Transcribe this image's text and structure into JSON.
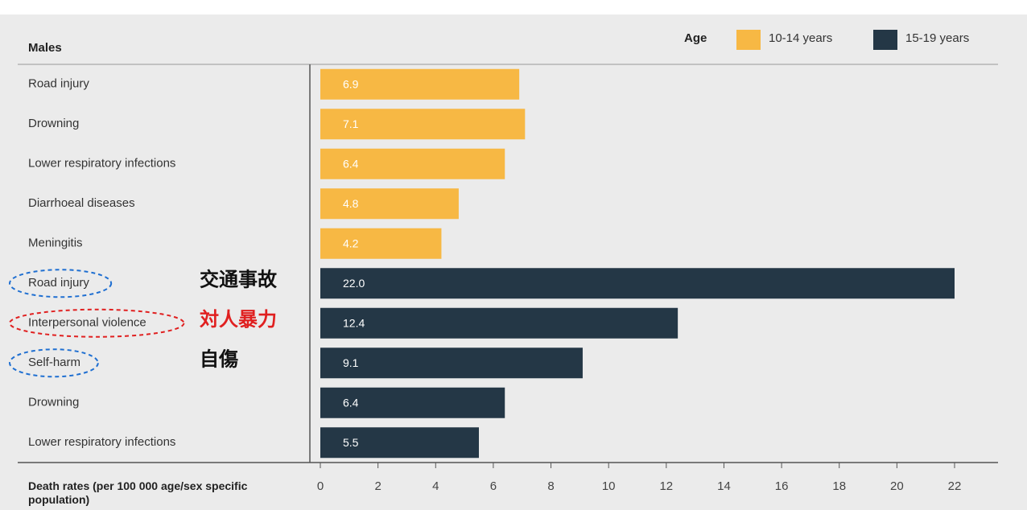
{
  "chart_data": {
    "type": "bar",
    "orientation": "horizontal",
    "title": "Males",
    "legend_title": "Age",
    "xlabel": "Death rates (per 100 000 age/sex specific population)",
    "categories": [
      "Road injury",
      "Drowning",
      "Lower respiratory infections",
      "Diarrhoeal diseases",
      "Meningitis",
      "Road injury",
      "Interpersonal violence",
      "Self-harm",
      "Drowning",
      "Lower respiratory infections"
    ],
    "series": [
      {
        "name": "10-14 years",
        "color": "#f7b844",
        "values": [
          6.9,
          7.1,
          6.4,
          4.8,
          4.2,
          null,
          null,
          null,
          null,
          null
        ]
      },
      {
        "name": "15-19 years",
        "color": "#243746",
        "values": [
          null,
          null,
          null,
          null,
          null,
          22,
          12.4,
          9.1,
          6.4,
          5.5
        ],
        "value_labels": [
          null,
          null,
          null,
          null,
          null,
          "22.0",
          "12.4",
          "9.1",
          "6.4",
          "5.5"
        ]
      }
    ],
    "xlim": [
      0,
      22
    ],
    "xticks": [
      0,
      2,
      4,
      6,
      8,
      10,
      12,
      14,
      16,
      18,
      20,
      22
    ],
    "annotations": [
      {
        "text": "交通事故",
        "category": 5,
        "color": "#1f6fd1"
      },
      {
        "text": "対人暴力",
        "category": 6,
        "color": "#e02020"
      },
      {
        "text": "自傷",
        "category": 7,
        "color": "#1f6fd1"
      }
    ]
  }
}
